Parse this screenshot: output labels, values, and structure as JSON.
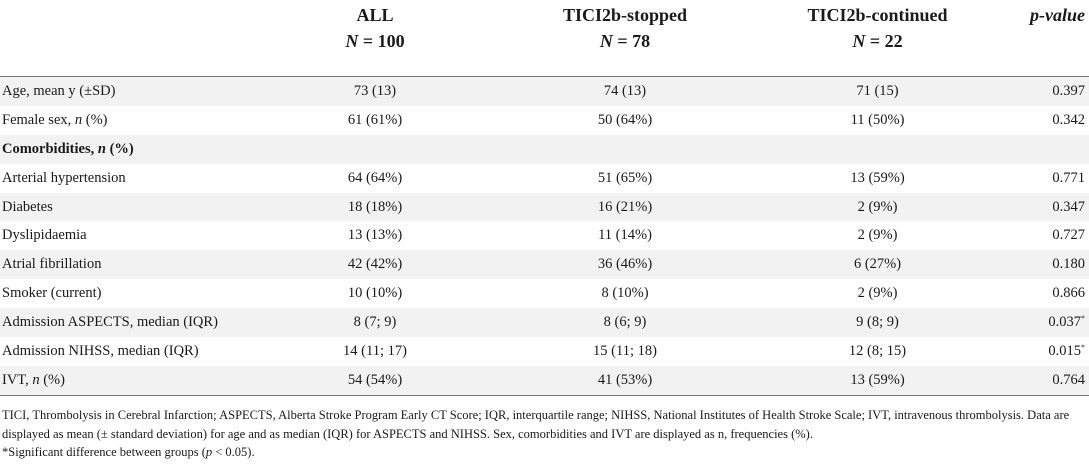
{
  "table": {
    "columns": [
      {
        "line1": "ALL",
        "line2": "N = 100"
      },
      {
        "line1": "TICI2b-stopped",
        "line2": "N = 78"
      },
      {
        "line1": "TICI2b-continued",
        "line2": "N = 22"
      }
    ],
    "pvalue_header": "p-value",
    "rows": [
      {
        "label": "Age, mean y (±SD)",
        "values": [
          "73 (13)",
          "74 (13)",
          "71 (15)"
        ],
        "p": "0.397",
        "p_sig": ""
      },
      {
        "label": "Female sex, n (%)",
        "values": [
          "61 (61%)",
          "50 (64%)",
          "11 (50%)"
        ],
        "p": "0.342",
        "p_sig": ""
      },
      {
        "label": "Comorbidities, n (%)",
        "values": [
          "",
          "",
          ""
        ],
        "p": "",
        "p_sig": "",
        "group": true
      },
      {
        "label": "Arterial hypertension",
        "values": [
          "64 (64%)",
          "51 (65%)",
          "13 (59%)"
        ],
        "p": "0.771",
        "p_sig": ""
      },
      {
        "label": "Diabetes",
        "values": [
          "18 (18%)",
          "16 (21%)",
          "2 (9%)"
        ],
        "p": "0.347",
        "p_sig": ""
      },
      {
        "label": "Dyslipidaemia",
        "values": [
          "13 (13%)",
          "11 (14%)",
          "2 (9%)"
        ],
        "p": "0.727",
        "p_sig": ""
      },
      {
        "label": "Atrial fibrillation",
        "values": [
          "42 (42%)",
          "36 (46%)",
          "6 (27%)"
        ],
        "p": "0.180",
        "p_sig": ""
      },
      {
        "label": "Smoker (current)",
        "values": [
          "10 (10%)",
          "8 (10%)",
          "2 (9%)"
        ],
        "p": "0.866",
        "p_sig": ""
      },
      {
        "label": "Admission ASPECTS, median (IQR)",
        "values": [
          "8 (7; 9)",
          "8 (6; 9)",
          "9 (8; 9)"
        ],
        "p": "0.037",
        "p_sig": "*"
      },
      {
        "label": "Admission NIHSS, median (IQR)",
        "values": [
          "14 (11; 17)",
          "15 (11; 18)",
          "12 (8; 15)"
        ],
        "p": "0.015",
        "p_sig": "*"
      },
      {
        "label": "IVT, n (%)",
        "values": [
          "54 (54%)",
          "41 (53%)",
          "13 (59%)"
        ],
        "p": "0.764",
        "p_sig": ""
      }
    ]
  },
  "footnotes": {
    "line1": "TICI, Thrombolysis in Cerebral Infarction; ASPECTS, Alberta Stroke Program Early CT Score; IQR, interquartile range; NIHSS, National Institutes of Health Stroke Scale; IVT, intravenous thrombolysis. Data are displayed as mean (± standard deviation) for age and as median (IQR) for ASPECTS and NIHSS. Sex, comorbidities and IVT are displayed as n, frequencies (%).",
    "line2": "*Significant difference between groups (p < 0.05)."
  },
  "colors": {
    "alt_row_bg": "#f2f2f2",
    "rule": "#777777",
    "text": "#1a1a1a"
  }
}
